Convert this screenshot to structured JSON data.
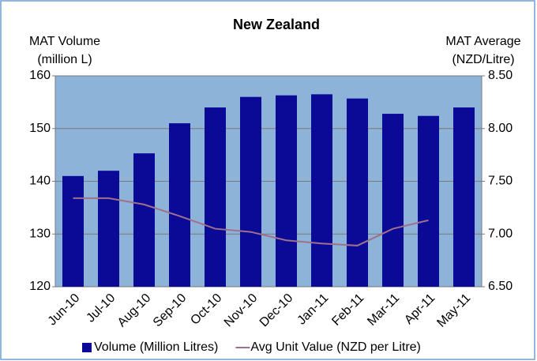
{
  "chart_data": {
    "type": "bar_line",
    "title": "New Zealand",
    "y_label": [
      "MAT Volume",
      "(million L)"
    ],
    "y2_label": [
      "MAT Average",
      "(NZD/Litre)"
    ],
    "categories": [
      "Jun-10",
      "Jul-10",
      "Aug-10",
      "Sep-10",
      "Oct-10",
      "Nov-10",
      "Dec-10",
      "Jan-11",
      "Feb-11",
      "Mar-11",
      "Apr-11",
      "May-11"
    ],
    "series": [
      {
        "name": "Volume (Million Litres)",
        "type": "bar",
        "color": "#0a0a96",
        "values": [
          141,
          142,
          145.3,
          151,
          154,
          156,
          156.3,
          156.5,
          155.7,
          152.8,
          152.4,
          154
        ]
      },
      {
        "name": "Avg Unit Value (NZD per Litre)",
        "type": "line",
        "axis": "y2",
        "color": "#a0708c",
        "values": [
          7.34,
          7.34,
          7.28,
          7.17,
          7.05,
          7.02,
          6.94,
          6.91,
          6.89,
          7.05,
          7.13,
          null
        ]
      }
    ],
    "ylim": [
      120,
      160
    ],
    "yticks": [
      120,
      130,
      140,
      150,
      160
    ],
    "y2lim": [
      6.5,
      8.5
    ],
    "y2ticks": [
      {
        "value": 6.5,
        "label": "6.50"
      },
      {
        "value": 7,
        "label": "7.00"
      },
      {
        "value": 7.5,
        "label": "7.50"
      },
      {
        "value": 8,
        "label": "8.00"
      },
      {
        "value": 8.5,
        "label": "8.50"
      }
    ],
    "plot_background": "#8db3d8",
    "grid": true,
    "legend": "bottom"
  }
}
